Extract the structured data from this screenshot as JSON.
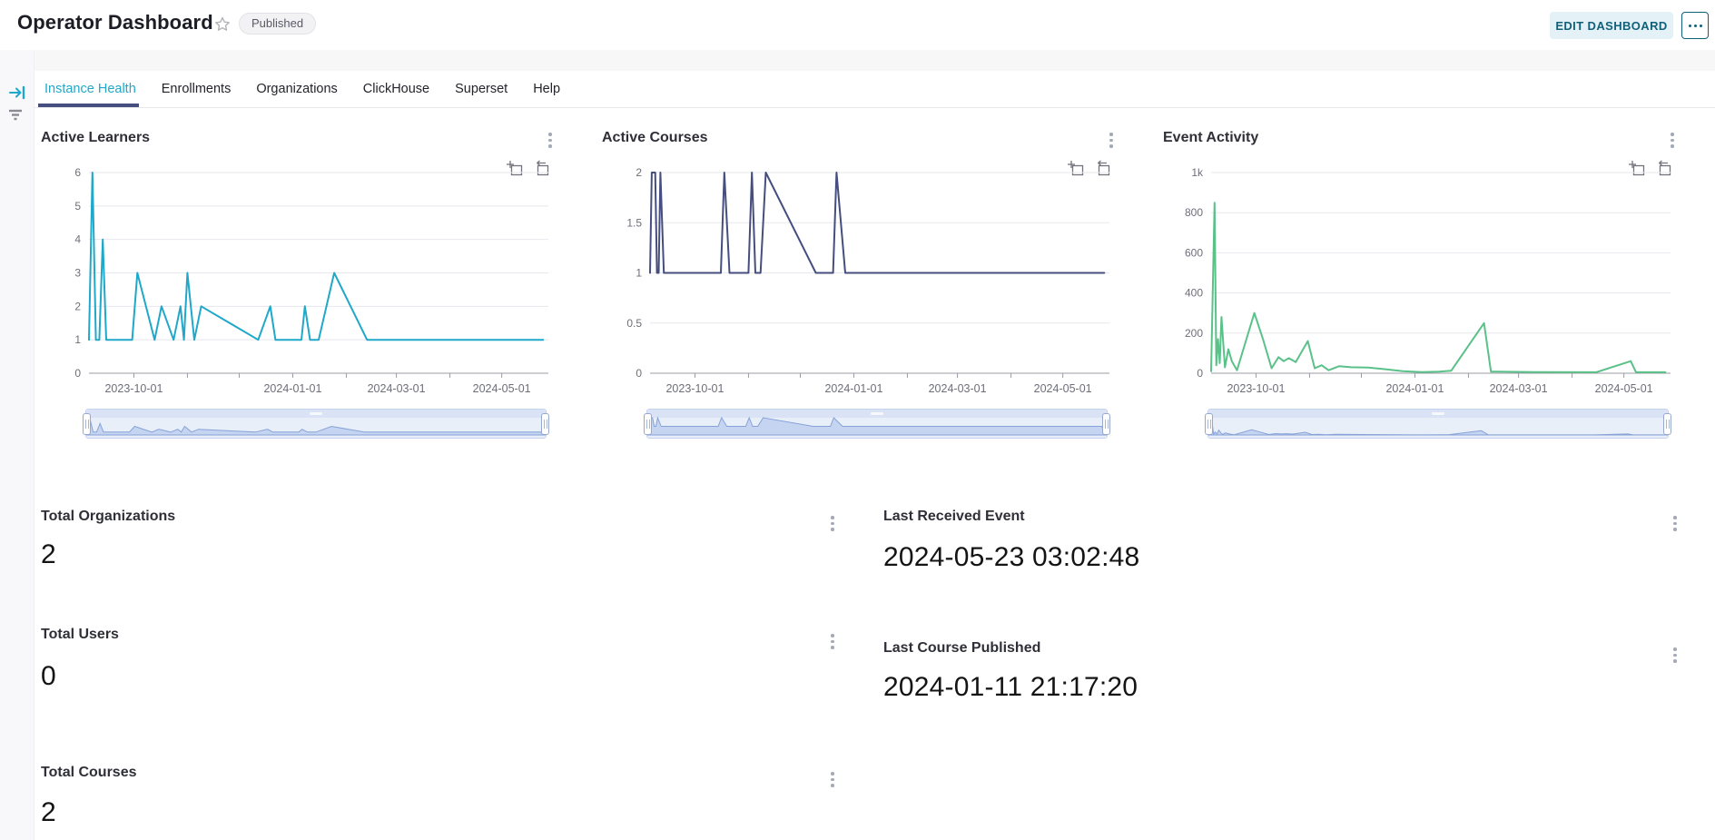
{
  "header": {
    "title": "Operator Dashboard",
    "published_label": "Published",
    "edit_button": "EDIT DASHBOARD"
  },
  "icons": {
    "favorite": "star-outline",
    "more_options": "ellipsis",
    "expand_filters": "arrow-to-bar-right",
    "filters": "filter-lines",
    "chart_menu": "kebab-vertical",
    "zoom_select": "zoom-area-box",
    "zoom_reset": "zoom-reset-box"
  },
  "tabs": {
    "items": [
      {
        "label": "Instance Health",
        "active": true
      },
      {
        "label": "Enrollments",
        "active": false
      },
      {
        "label": "Organizations",
        "active": false
      },
      {
        "label": "ClickHouse",
        "active": false
      },
      {
        "label": "Superset",
        "active": false
      },
      {
        "label": "Help",
        "active": false
      }
    ]
  },
  "big_numbers": [
    {
      "title": "Total Organizations",
      "value": "2"
    },
    {
      "title": "Last Received Event",
      "value": "2024-05-23 03:02:48"
    },
    {
      "title": "Total Users",
      "value": "0"
    },
    {
      "title": "Last Course Published",
      "value": "2024-01-11 21:17:20"
    },
    {
      "title": "Total Courses",
      "value": "2"
    }
  ],
  "chart_data": [
    {
      "type": "line",
      "title": "Active Learners",
      "color": "#1FA8C9",
      "ylim": [
        0,
        6
      ],
      "yticks": [
        0,
        1,
        2,
        3,
        4,
        5,
        6
      ],
      "ytick_labels": [
        "0",
        "1",
        "2",
        "3",
        "4",
        "5",
        "6"
      ],
      "x_range": [
        "2023-09-05",
        "2024-05-28"
      ],
      "month_ticks": [
        "2023-10-01",
        "2023-11-01",
        "2023-12-01",
        "2024-01-01",
        "2024-02-01",
        "2024-03-01",
        "2024-04-01",
        "2024-05-01"
      ],
      "xticks": [
        "2023-10-01",
        "2024-01-01",
        "2024-03-01",
        "2024-05-01"
      ],
      "grid": true,
      "legend": "none",
      "series": [
        {
          "name": "Active Learners",
          "points": [
            [
              "2023-09-05",
              1
            ],
            [
              "2023-09-07",
              6
            ],
            [
              "2023-09-09",
              1
            ],
            [
              "2023-09-11",
              1
            ],
            [
              "2023-09-13",
              4
            ],
            [
              "2023-09-15",
              1
            ],
            [
              "2023-09-30",
              1
            ],
            [
              "2023-10-03",
              3
            ],
            [
              "2023-10-13",
              1
            ],
            [
              "2023-10-17",
              2
            ],
            [
              "2023-10-24",
              1
            ],
            [
              "2023-10-28",
              2
            ],
            [
              "2023-10-30",
              1
            ],
            [
              "2023-11-01",
              3
            ],
            [
              "2023-11-05",
              1
            ],
            [
              "2023-11-09",
              2
            ],
            [
              "2023-12-12",
              1
            ],
            [
              "2023-12-19",
              2
            ],
            [
              "2023-12-22",
              1
            ],
            [
              "2024-01-06",
              1
            ],
            [
              "2024-01-08",
              2
            ],
            [
              "2024-01-11",
              1
            ],
            [
              "2024-01-16",
              1
            ],
            [
              "2024-01-25",
              3
            ],
            [
              "2024-02-13",
              1
            ],
            [
              "2024-05-25",
              1
            ]
          ]
        }
      ]
    },
    {
      "type": "line",
      "title": "Active Courses",
      "color": "#454E7E",
      "ylim": [
        0,
        2
      ],
      "yticks": [
        0,
        0.5,
        1,
        1.5,
        2
      ],
      "ytick_labels": [
        "0",
        "0.5",
        "1",
        "1.5",
        "2"
      ],
      "x_range": [
        "2023-09-05",
        "2024-05-28"
      ],
      "month_ticks": [
        "2023-10-01",
        "2023-11-01",
        "2023-12-01",
        "2024-01-01",
        "2024-02-01",
        "2024-03-01",
        "2024-04-01",
        "2024-05-01"
      ],
      "xticks": [
        "2023-10-01",
        "2024-01-01",
        "2024-03-01",
        "2024-05-01"
      ],
      "grid": true,
      "legend": "none",
      "series": [
        {
          "name": "Active Courses",
          "points": [
            [
              "2023-09-05",
              1
            ],
            [
              "2023-09-06",
              2
            ],
            [
              "2023-09-08",
              2
            ],
            [
              "2023-09-09",
              1
            ],
            [
              "2023-09-10",
              1
            ],
            [
              "2023-09-11",
              2
            ],
            [
              "2023-09-13",
              1
            ],
            [
              "2023-10-16",
              1
            ],
            [
              "2023-10-18",
              2
            ],
            [
              "2023-10-21",
              1
            ],
            [
              "2023-11-01",
              1
            ],
            [
              "2023-11-03",
              2
            ],
            [
              "2023-11-05",
              1
            ],
            [
              "2023-11-08",
              1
            ],
            [
              "2023-11-11",
              2
            ],
            [
              "2023-12-10",
              1
            ],
            [
              "2023-12-20",
              1
            ],
            [
              "2023-12-22",
              2
            ],
            [
              "2023-12-27",
              1
            ],
            [
              "2024-05-25",
              1
            ]
          ]
        }
      ]
    },
    {
      "type": "line",
      "title": "Event Activity",
      "color": "#5AC189",
      "ylim": [
        0,
        1000
      ],
      "yticks": [
        0,
        200,
        400,
        600,
        800,
        1000
      ],
      "ytick_labels": [
        "0",
        "200",
        "400",
        "600",
        "800",
        "1k"
      ],
      "x_range": [
        "2023-09-05",
        "2024-05-28"
      ],
      "month_ticks": [
        "2023-10-01",
        "2023-11-01",
        "2023-12-01",
        "2024-01-01",
        "2024-02-01",
        "2024-03-01",
        "2024-04-01",
        "2024-05-01"
      ],
      "xticks": [
        "2023-10-01",
        "2024-01-01",
        "2024-03-01",
        "2024-05-01"
      ],
      "grid": true,
      "legend": "none",
      "series": [
        {
          "name": "Event Activity",
          "points": [
            [
              "2023-09-05",
              10
            ],
            [
              "2023-09-07",
              850
            ],
            [
              "2023-09-08",
              40
            ],
            [
              "2023-09-09",
              170
            ],
            [
              "2023-09-10",
              50
            ],
            [
              "2023-09-11",
              280
            ],
            [
              "2023-09-13",
              30
            ],
            [
              "2023-09-15",
              120
            ],
            [
              "2023-09-17",
              60
            ],
            [
              "2023-09-20",
              15
            ],
            [
              "2023-09-30",
              300
            ],
            [
              "2023-10-05",
              170
            ],
            [
              "2023-10-10",
              25
            ],
            [
              "2023-10-14",
              80
            ],
            [
              "2023-10-17",
              60
            ],
            [
              "2023-10-20",
              75
            ],
            [
              "2023-10-24",
              55
            ],
            [
              "2023-10-31",
              160
            ],
            [
              "2023-11-04",
              25
            ],
            [
              "2023-11-08",
              40
            ],
            [
              "2023-11-12",
              15
            ],
            [
              "2023-11-18",
              35
            ],
            [
              "2023-11-25",
              30
            ],
            [
              "2023-12-05",
              28
            ],
            [
              "2023-12-15",
              20
            ],
            [
              "2023-12-25",
              10
            ],
            [
              "2024-01-05",
              6
            ],
            [
              "2024-01-15",
              8
            ],
            [
              "2024-01-22",
              12
            ],
            [
              "2024-02-10",
              250
            ],
            [
              "2024-02-14",
              8
            ],
            [
              "2024-03-10",
              6
            ],
            [
              "2024-04-15",
              5
            ],
            [
              "2024-05-05",
              60
            ],
            [
              "2024-05-08",
              5
            ],
            [
              "2024-05-25",
              5
            ]
          ]
        }
      ]
    }
  ]
}
